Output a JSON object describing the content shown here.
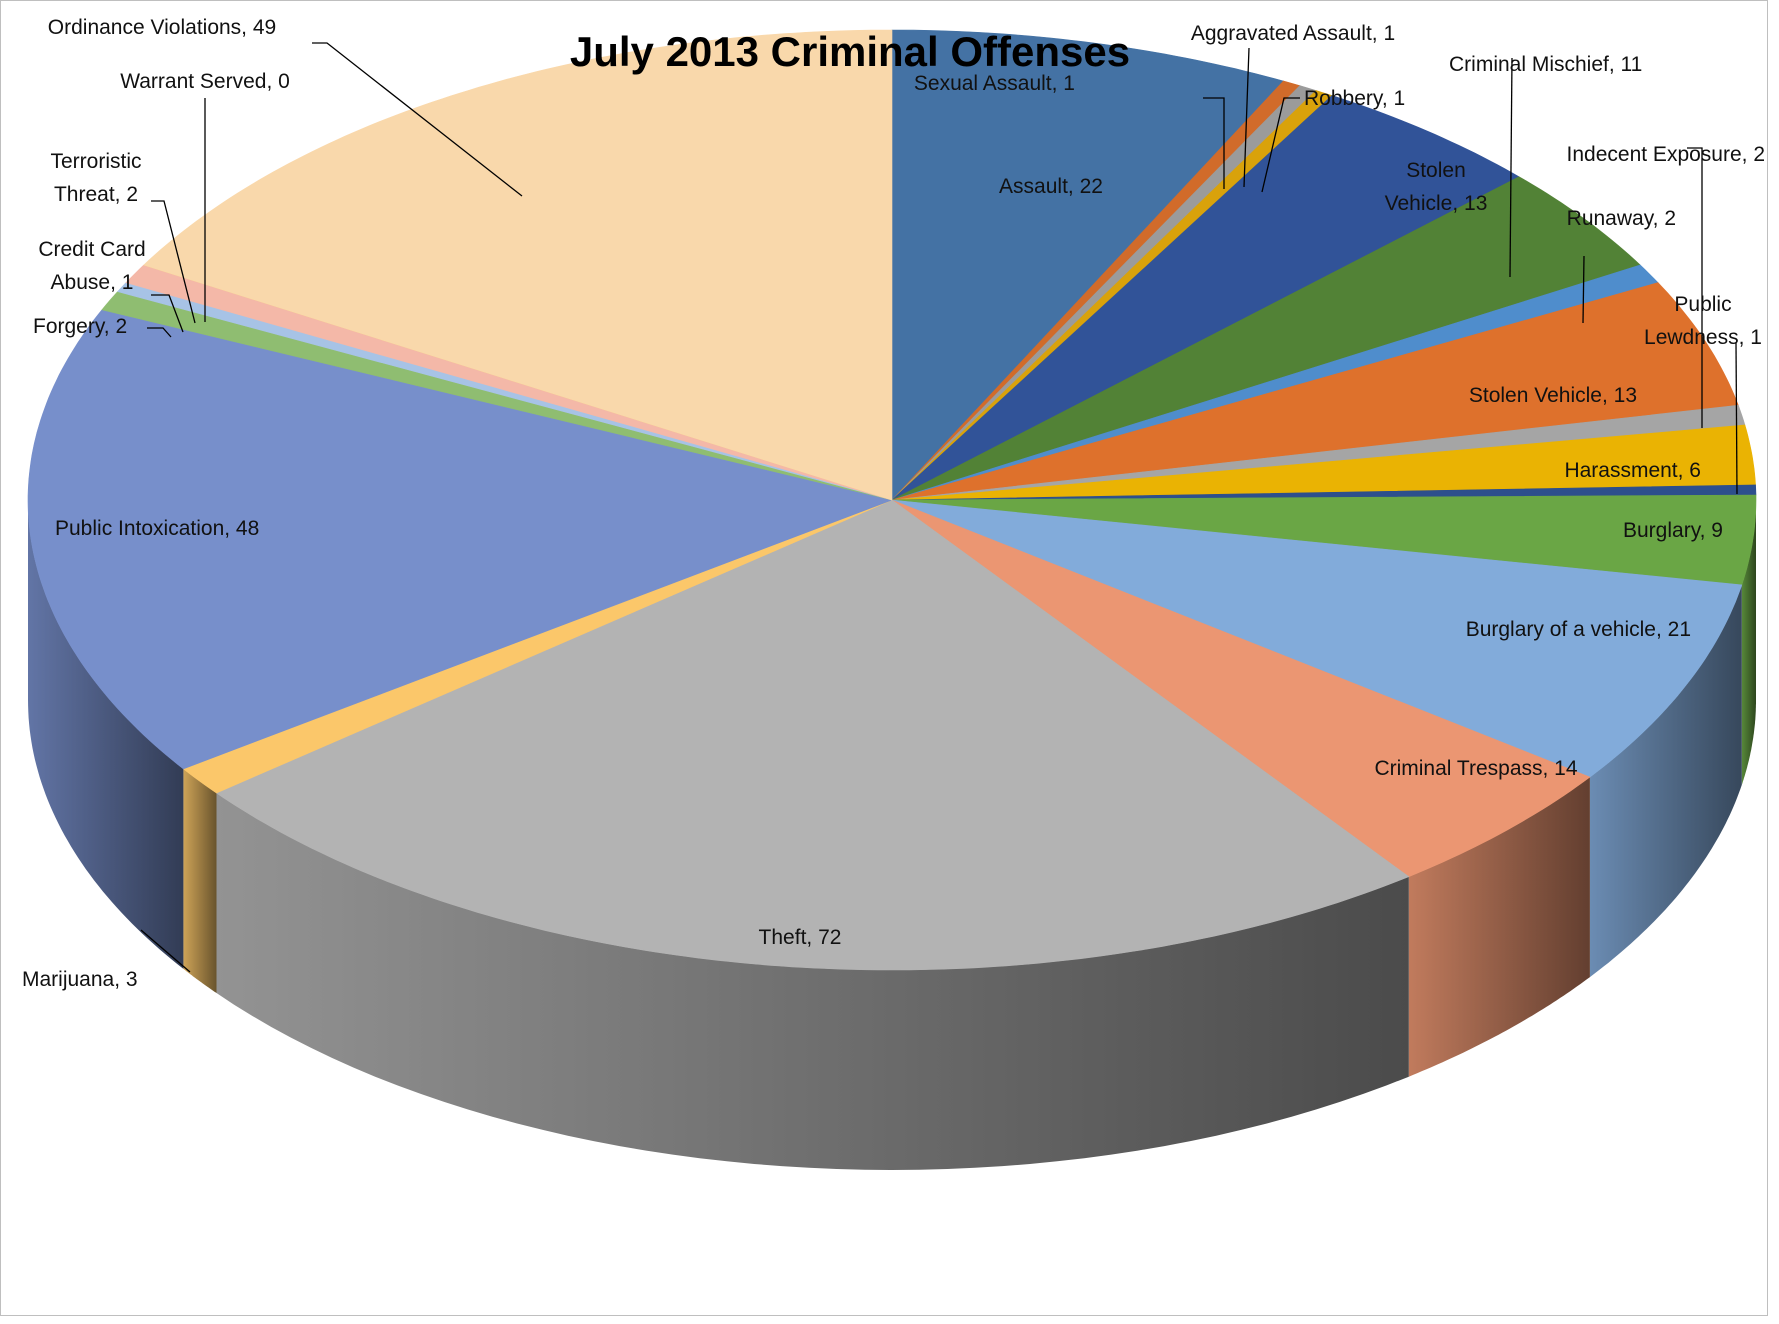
{
  "chart_data": {
    "type": "pie",
    "variant": "3d",
    "title": "July 2013 Criminal Offenses",
    "label_format": "{name}, {value}",
    "slices": [
      {
        "name": "Assault",
        "value": 22,
        "color": "#4472a4"
      },
      {
        "name": "Sexual Assault",
        "value": 1,
        "color": "#d16b2a"
      },
      {
        "name": "Aggravated Assault",
        "value": 1,
        "color": "#9b9b9b"
      },
      {
        "name": "Robbery",
        "value": 1,
        "color": "#d9a20b"
      },
      {
        "name": "Stolen Vehicle",
        "value": 13,
        "color": "#315398"
      },
      {
        "name": "Criminal Mischief",
        "value": 11,
        "color": "#528236"
      },
      {
        "name": "Runaway",
        "value": 2,
        "color": "#4f8dcc"
      },
      {
        "name": "Stolen Vehicle",
        "value": 13,
        "color": "#de712c"
      },
      {
        "name": "Indecent Exposure",
        "value": 2,
        "color": "#a5a5a5"
      },
      {
        "name": "Harassment",
        "value": 6,
        "color": "#eab303"
      },
      {
        "name": "Public Lewdness",
        "value": 1,
        "color": "#2d4f8c"
      },
      {
        "name": "Burglary",
        "value": 9,
        "color": "#6aa645"
      },
      {
        "name": "Burglary of a vehicle",
        "value": 21,
        "color": "#82abda"
      },
      {
        "name": "Criminal Trespass",
        "value": 14,
        "color": "#eb9672"
      },
      {
        "name": "Theft ",
        "value": 72,
        "color": "#b3b3b3"
      },
      {
        "name": "Marijuana",
        "value": 3,
        "color": "#fbc76a"
      },
      {
        "name": "Public Intoxication",
        "value": 48,
        "color": "#778fcb"
      },
      {
        "name": "Forgery",
        "value": 2,
        "color": "#8fbd71"
      },
      {
        "name": "Credit Card Abuse",
        "value": 1,
        "color": "#a7c3e6"
      },
      {
        "name": "Terroristic Threat",
        "value": 2,
        "color": "#f4b8a8"
      },
      {
        "name": "Warrant Served",
        "value": 0,
        "color": "#ffd966"
      },
      {
        "name": "Ordinance Violations",
        "value": 49,
        "color": "#f9d8ab"
      }
    ]
  }
}
